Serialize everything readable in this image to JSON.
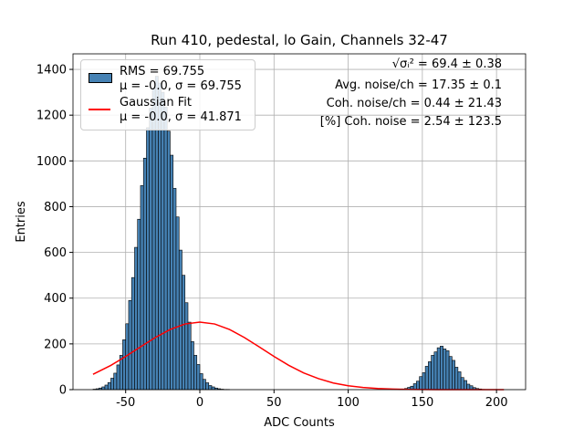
{
  "chart_data": {
    "type": "histogram",
    "title": "Run 410, pedestal, lo Gain, Channels 32-47",
    "xlabel": "ADC Counts",
    "ylabel": "Entries",
    "xlim": [
      -85.5,
      219.6
    ],
    "ylim": [
      0,
      1468
    ],
    "xticks": [
      -50,
      0,
      50,
      100,
      150,
      200
    ],
    "yticks": [
      0,
      200,
      400,
      600,
      800,
      1000,
      1200,
      1400
    ],
    "grid": true,
    "legend": "upper left",
    "bins": [
      -72,
      -70,
      -68,
      -66,
      -64,
      -62,
      -60,
      -58,
      -56,
      -54,
      -52,
      -50,
      -48,
      -46,
      -44,
      -42,
      -40,
      -38,
      -36,
      -34,
      -32,
      -30,
      -28,
      -26,
      -24,
      -22,
      -20,
      -18,
      -16,
      -14,
      -12,
      -10,
      -8,
      -6,
      -4,
      -2,
      0,
      2,
      4,
      6,
      8,
      10,
      12,
      14,
      16,
      18,
      20,
      22,
      24,
      26,
      28,
      30,
      32,
      34,
      36,
      38,
      40,
      42,
      44,
      46,
      48,
      50,
      52,
      54,
      56,
      58,
      60,
      62,
      64,
      66,
      68,
      70,
      72,
      74,
      76,
      78,
      80,
      82,
      84,
      86,
      88,
      90,
      92,
      94,
      96,
      98,
      100,
      102,
      104,
      106,
      108,
      110,
      112,
      114,
      116,
      118,
      120,
      122,
      124,
      126,
      128,
      130,
      132,
      134,
      136,
      138,
      140,
      142,
      144,
      146,
      148,
      150,
      152,
      154,
      156,
      158,
      160,
      162,
      164,
      166,
      168,
      170,
      172,
      174,
      176,
      178,
      180,
      182,
      184,
      186,
      188,
      190,
      192,
      194,
      196,
      198,
      200,
      202,
      204,
      206
    ],
    "series": [
      {
        "name": "RMS = 69.755\nμ = -0.0, σ = 69.755",
        "type": "histogram",
        "color": "#4682b4",
        "edgecolor": "#000000",
        "values": [
          2,
          4,
          7,
          12,
          20,
          31,
          50,
          72,
          108,
          150,
          218,
          288,
          390,
          490,
          622,
          745,
          892,
          1012,
          1145,
          1230,
          1320,
          1370,
          1340,
          1300,
          1235,
          1130,
          1025,
          880,
          755,
          610,
          500,
          380,
          295,
          210,
          150,
          110,
          70,
          45,
          30,
          18,
          12,
          7,
          4,
          2,
          1,
          1,
          0,
          0,
          0,
          0,
          0,
          0,
          0,
          0,
          0,
          0,
          0,
          0,
          0,
          0,
          0,
          0,
          0,
          0,
          0,
          0,
          0,
          0,
          0,
          0,
          0,
          0,
          0,
          0,
          0,
          0,
          0,
          0,
          0,
          0,
          0,
          0,
          0,
          0,
          0,
          0,
          0,
          0,
          0,
          0,
          0,
          0,
          0,
          0,
          0,
          0,
          0,
          0,
          0,
          0,
          0,
          0,
          0,
          1,
          3,
          5,
          10,
          15,
          26,
          37,
          57,
          74,
          102,
          122,
          150,
          165,
          183,
          190,
          178,
          170,
          145,
          128,
          98,
          78,
          53,
          40,
          24,
          17,
          9,
          5,
          3,
          1,
          0,
          0,
          0,
          0,
          0,
          0,
          0
        ]
      },
      {
        "name": "Gaussian Fit\nμ = -0.0, σ = 41.871",
        "type": "line",
        "color": "#ff0000",
        "x": [
          -72,
          -60,
          -50,
          -40,
          -30,
          -20,
          -10,
          0,
          10,
          20,
          30,
          40,
          50,
          60,
          70,
          80,
          90,
          100,
          110,
          120,
          130,
          140,
          150,
          160,
          170,
          180,
          190,
          205
        ],
        "values": [
          67,
          106,
          145,
          187,
          228,
          263,
          287,
          295,
          287,
          263,
          228,
          187,
          145,
          106,
          73,
          48,
          29,
          17,
          9.4,
          4.9,
          2.4,
          1.1,
          0.5,
          0.2,
          0.1,
          0,
          0,
          0
        ]
      }
    ],
    "annotations": [
      "√σᵢ² = 69.4 ± 0.38",
      "Avg. noise/ch = 17.35 ± 0.1",
      "Coh. noise/ch = 0.44 ± 21.43",
      "[%] Coh. noise = 2.54 ± 123.5"
    ]
  }
}
